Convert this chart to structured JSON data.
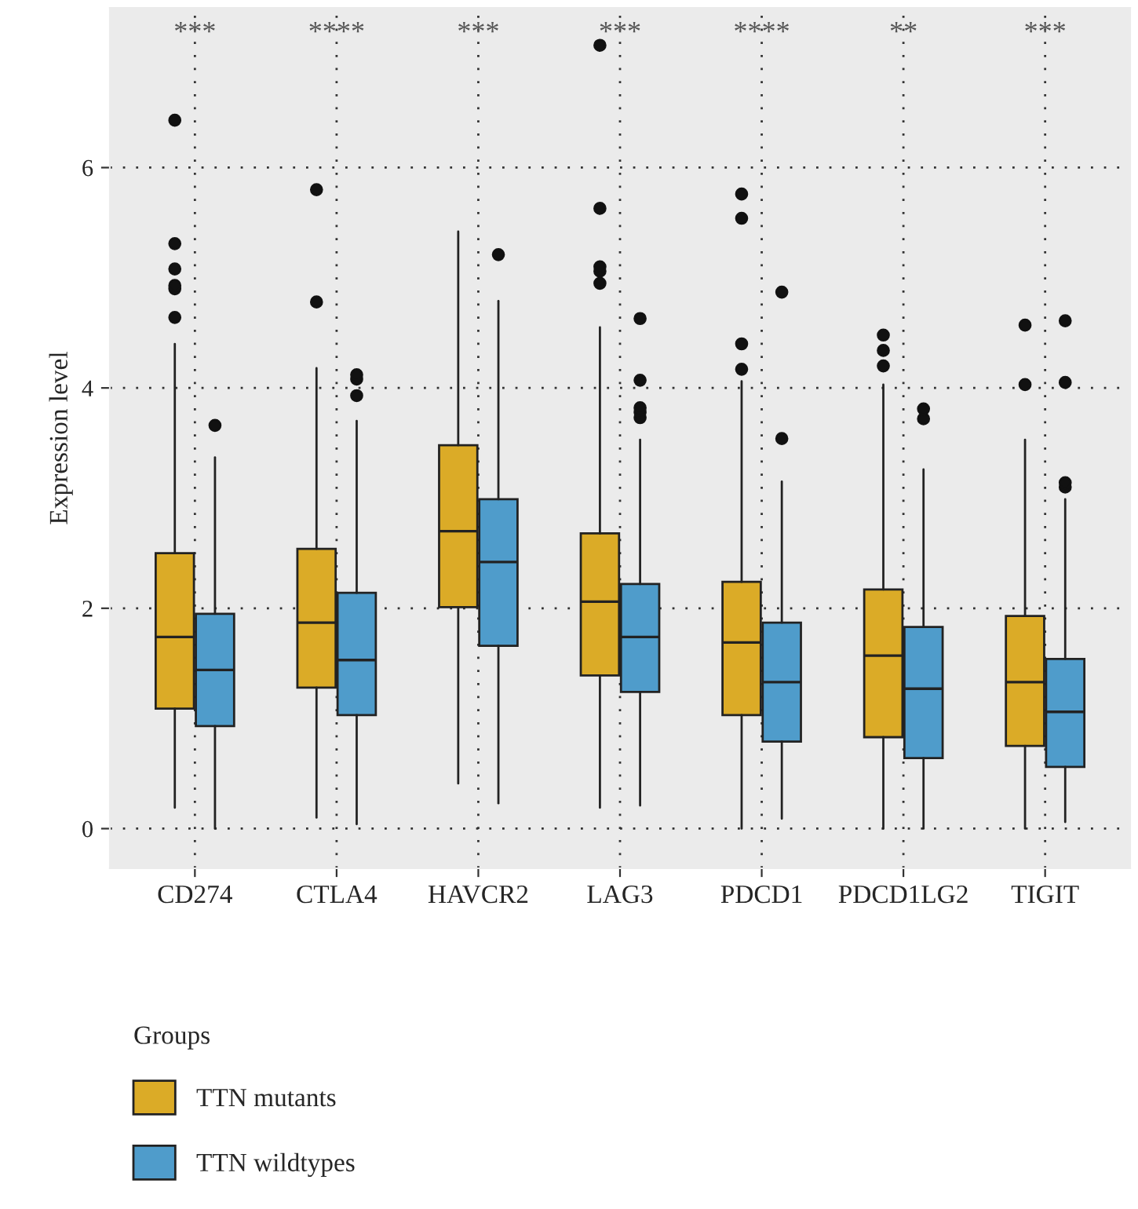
{
  "chart_data": {
    "type": "box",
    "ylabel": "Expression level",
    "legend_title": "Groups",
    "legend": "bottom left",
    "grid": true,
    "categories": [
      "CD274",
      "CTLA4",
      "HAVCR2",
      "LAG3",
      "PDCD1",
      "PDCD1LG2",
      "TIGIT"
    ],
    "ylim": [
      -0.36,
      7.45
    ],
    "yticks": [
      0,
      2,
      4,
      6
    ],
    "series": [
      {
        "name": "TTN mutants",
        "color": "#dbab27",
        "boxes": [
          {
            "low": 0.19,
            "q1": 1.09,
            "median": 1.74,
            "q3": 2.5,
            "high": 4.4,
            "outliers": [
              4.64,
              4.9,
              4.93,
              5.08,
              5.31,
              6.43
            ]
          },
          {
            "low": 0.1,
            "q1": 1.28,
            "median": 1.87,
            "q3": 2.54,
            "high": 4.18,
            "outliers": [
              4.78,
              5.8
            ]
          },
          {
            "low": 0.41,
            "q1": 2.01,
            "median": 2.7,
            "q3": 3.48,
            "high": 5.42
          },
          {
            "low": 0.19,
            "q1": 1.39,
            "median": 2.06,
            "q3": 2.68,
            "high": 4.55,
            "outliers": [
              4.95,
              5.06,
              5.1,
              5.63,
              7.11
            ]
          },
          {
            "low": 0.0,
            "q1": 1.03,
            "median": 1.69,
            "q3": 2.24,
            "high": 4.06,
            "outliers": [
              4.17,
              4.4,
              5.54,
              5.76
            ]
          },
          {
            "low": 0.0,
            "q1": 0.83,
            "median": 1.57,
            "q3": 2.17,
            "high": 4.03,
            "outliers": [
              4.2,
              4.34,
              4.48
            ]
          },
          {
            "low": 0.0,
            "q1": 0.75,
            "median": 1.33,
            "q3": 1.93,
            "high": 3.53,
            "outliers": [
              4.03,
              4.57
            ]
          }
        ]
      },
      {
        "name": "TTN wildtypes",
        "color": "#4f9ccb",
        "boxes": [
          {
            "low": 0.0,
            "q1": 0.93,
            "median": 1.44,
            "q3": 1.95,
            "high": 3.37,
            "outliers": [
              3.66
            ]
          },
          {
            "low": 0.04,
            "q1": 1.03,
            "median": 1.53,
            "q3": 2.14,
            "high": 3.7,
            "outliers": [
              3.93,
              4.08,
              4.12
            ]
          },
          {
            "low": 0.23,
            "q1": 1.66,
            "median": 2.42,
            "q3": 2.99,
            "high": 4.79,
            "outliers": [
              5.21
            ]
          },
          {
            "low": 0.21,
            "q1": 1.24,
            "median": 1.74,
            "q3": 2.22,
            "high": 3.53,
            "outliers": [
              3.73,
              3.78,
              3.82,
              4.07,
              4.63
            ]
          },
          {
            "low": 0.09,
            "q1": 0.79,
            "median": 1.33,
            "q3": 1.87,
            "high": 3.15,
            "outliers": [
              3.54,
              4.87
            ]
          },
          {
            "low": 0.0,
            "q1": 0.64,
            "median": 1.27,
            "q3": 1.83,
            "high": 3.26,
            "outliers": [
              3.72,
              3.81
            ]
          },
          {
            "low": 0.06,
            "q1": 0.56,
            "median": 1.06,
            "q3": 1.54,
            "high": 2.99,
            "outliers": [
              3.1,
              3.14,
              4.05,
              4.61
            ]
          }
        ]
      }
    ],
    "annotations": [
      "***",
      "****",
      "***",
      "***",
      "****",
      "**",
      "***"
    ]
  }
}
